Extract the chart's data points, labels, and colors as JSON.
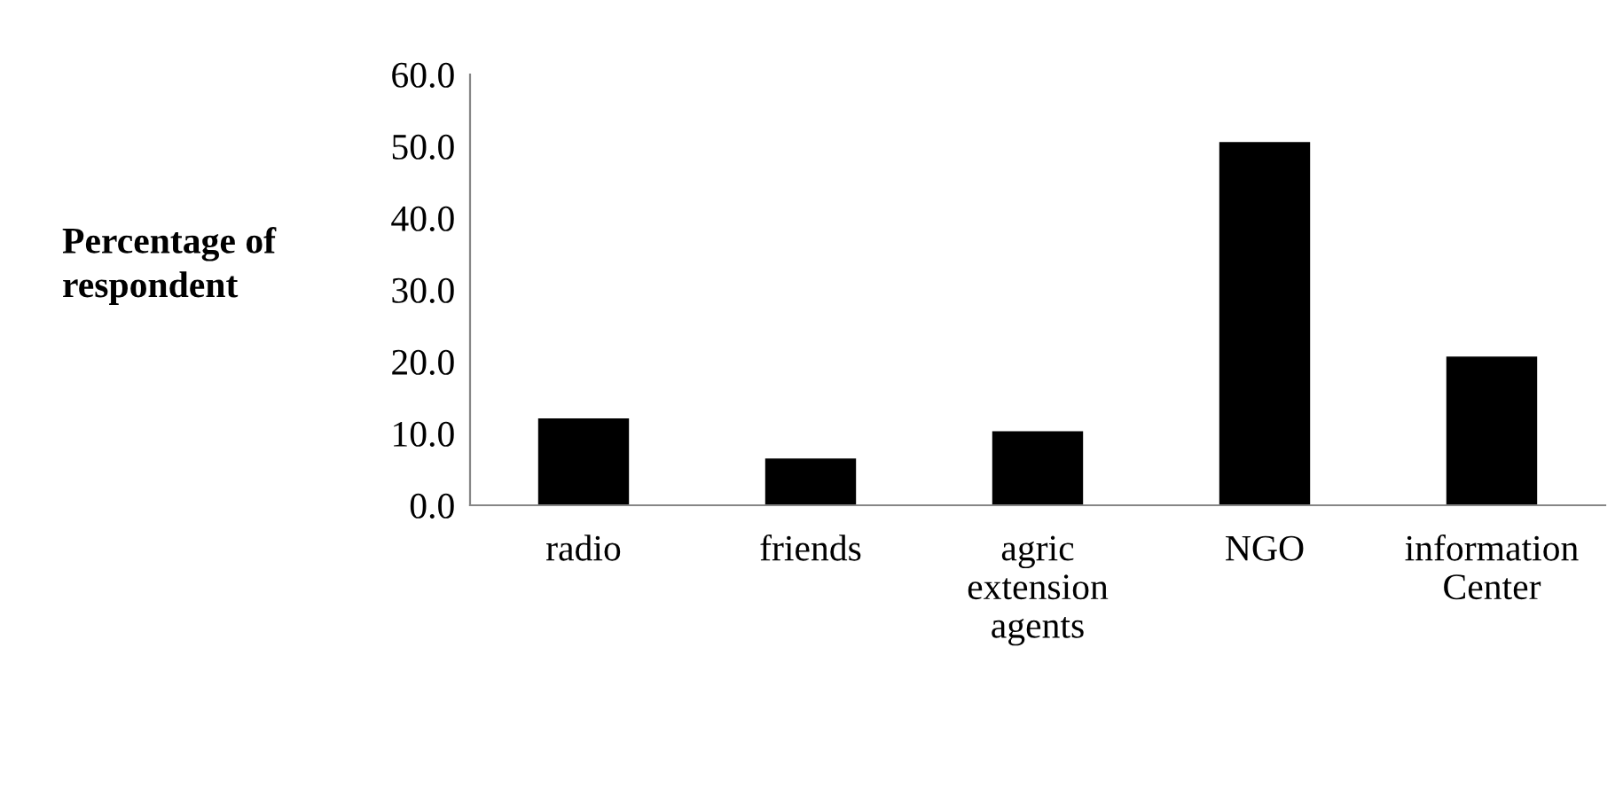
{
  "chart_data": {
    "type": "bar",
    "ylabel": "Percentage of\nrespondent",
    "categories": [
      "radio",
      "friends",
      "agric\nextension\nagents",
      "NGO",
      "information\nCenter"
    ],
    "values": [
      12.1,
      6.5,
      10.3,
      50.6,
      20.7
    ],
    "color": "#000000",
    "ylim": [
      0,
      60
    ],
    "yticks": [
      {
        "value": 0,
        "label": "0.0"
      },
      {
        "value": 10,
        "label": "10.0"
      },
      {
        "value": 20,
        "label": "20.0"
      },
      {
        "value": 30,
        "label": "30.0"
      },
      {
        "value": 40,
        "label": "40.0"
      },
      {
        "value": 50,
        "label": "50.0"
      },
      {
        "value": 60,
        "label": "60.0"
      }
    ],
    "grid": false
  }
}
